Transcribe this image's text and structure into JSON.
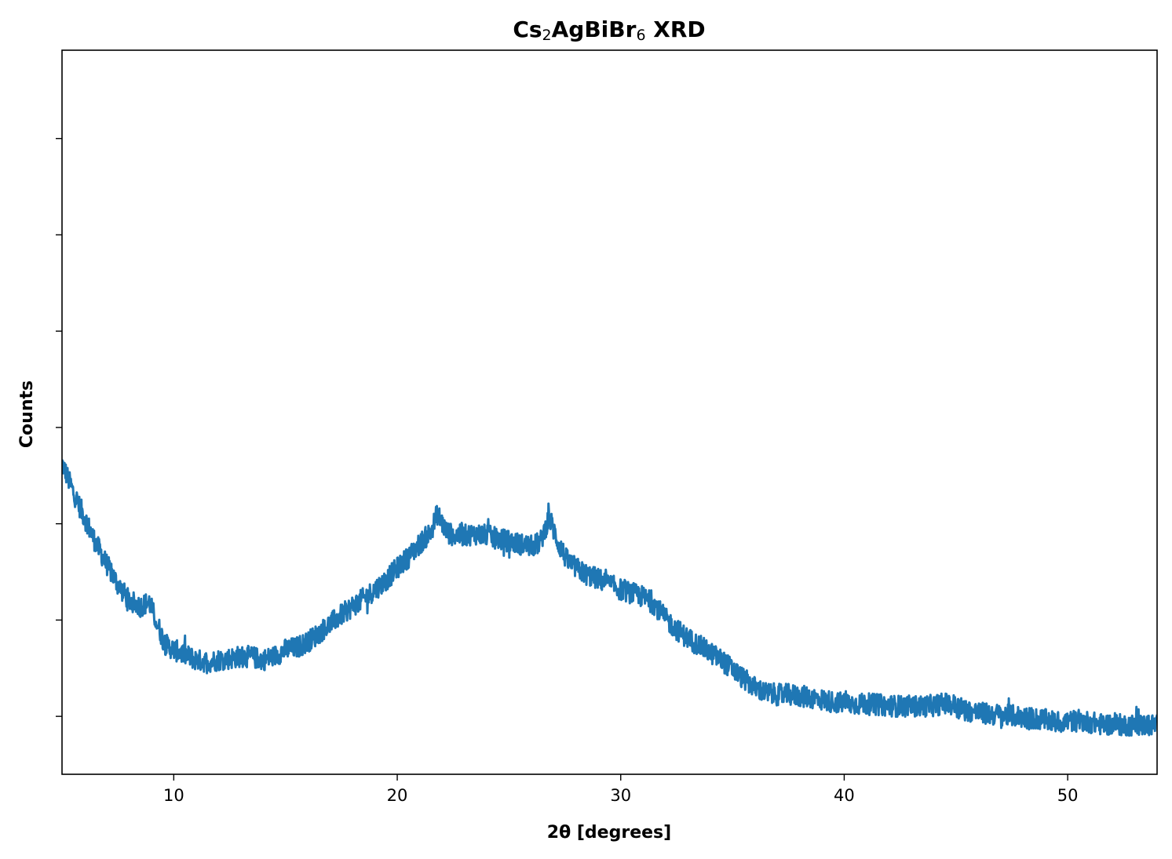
{
  "chart_data": {
    "type": "line",
    "title": {
      "parts": [
        {
          "text": "Cs",
          "sub": false
        },
        {
          "text": "2",
          "sub": true
        },
        {
          "text": "AgBiBr",
          "sub": false
        },
        {
          "text": "6",
          "sub": true
        },
        {
          "text": " XRD",
          "sub": false
        }
      ]
    },
    "xlabel": "2θ [degrees]",
    "ylabel": "Counts",
    "xlim": [
      5,
      54
    ],
    "ylim": [
      0,
      1
    ],
    "x_ticks": [
      10,
      20,
      30,
      40,
      50
    ],
    "y_ticks": [
      0.08,
      0.213,
      0.346,
      0.479,
      0.612,
      0.745,
      0.878
    ],
    "y_tick_labels_shown": false,
    "grid": false,
    "legend": "none",
    "series": [
      {
        "color": "#1f77b4",
        "x": [
          5.0,
          5.5,
          6.0,
          6.5,
          7.0,
          7.5,
          8.0,
          8.5,
          8.9,
          9.3,
          9.6,
          10.0,
          10.5,
          11.0,
          11.5,
          12.0,
          12.5,
          13.0,
          13.5,
          14.0,
          14.5,
          15.0,
          15.5,
          16.0,
          16.5,
          17.0,
          17.5,
          18.0,
          18.5,
          19.0,
          19.5,
          20.0,
          20.5,
          21.0,
          21.5,
          21.8,
          22.2,
          22.5,
          23.0,
          23.5,
          24.0,
          24.5,
          25.0,
          25.5,
          26.0,
          26.4,
          26.8,
          27.2,
          27.6,
          28.0,
          28.5,
          29.0,
          29.5,
          30.0,
          30.5,
          31.0,
          31.5,
          32.0,
          32.5,
          33.0,
          33.5,
          34.0,
          34.5,
          35.0,
          35.5,
          36.0,
          36.5,
          37.0,
          37.5,
          38.0,
          38.5,
          39.0,
          39.5,
          40.0,
          40.5,
          41.0,
          41.5,
          42.0,
          42.5,
          43.0,
          43.5,
          44.0,
          44.5,
          45.0,
          45.5,
          46.0,
          46.5,
          47.0,
          47.5,
          48.0,
          48.5,
          49.0,
          49.5,
          50.0,
          50.5,
          51.0,
          51.5,
          52.0,
          52.5,
          53.0,
          53.5,
          54.0
        ],
        "y": [
          0.43,
          0.39,
          0.355,
          0.32,
          0.29,
          0.262,
          0.24,
          0.232,
          0.238,
          0.205,
          0.18,
          0.172,
          0.165,
          0.158,
          0.155,
          0.158,
          0.16,
          0.163,
          0.162,
          0.158,
          0.163,
          0.172,
          0.175,
          0.183,
          0.195,
          0.208,
          0.22,
          0.232,
          0.243,
          0.255,
          0.268,
          0.285,
          0.3,
          0.318,
          0.335,
          0.36,
          0.335,
          0.33,
          0.33,
          0.332,
          0.33,
          0.325,
          0.322,
          0.318,
          0.315,
          0.32,
          0.355,
          0.32,
          0.295,
          0.285,
          0.275,
          0.27,
          0.262,
          0.255,
          0.25,
          0.245,
          0.235,
          0.215,
          0.2,
          0.188,
          0.178,
          0.168,
          0.158,
          0.145,
          0.132,
          0.12,
          0.112,
          0.11,
          0.11,
          0.108,
          0.106,
          0.103,
          0.1,
          0.098,
          0.097,
          0.097,
          0.096,
          0.095,
          0.094,
          0.094,
          0.094,
          0.095,
          0.098,
          0.095,
          0.088,
          0.085,
          0.083,
          0.082,
          0.081,
          0.079,
          0.077,
          0.075,
          0.072,
          0.073,
          0.074,
          0.072,
          0.069,
          0.069,
          0.068,
          0.068,
          0.068,
          0.068
        ]
      }
    ]
  }
}
